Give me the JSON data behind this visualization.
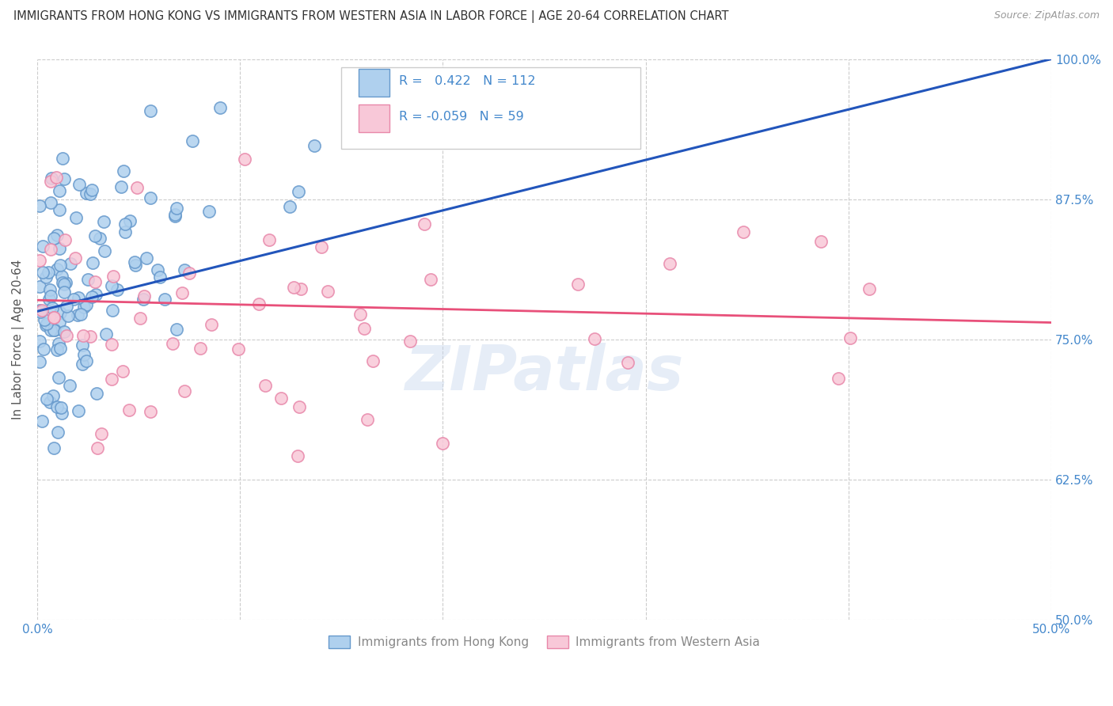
{
  "title": "IMMIGRANTS FROM HONG KONG VS IMMIGRANTS FROM WESTERN ASIA IN LABOR FORCE | AGE 20-64 CORRELATION CHART",
  "source": "Source: ZipAtlas.com",
  "ylabel": "In Labor Force | Age 20-64",
  "xlim": [
    0.0,
    0.5
  ],
  "ylim": [
    0.5,
    1.0
  ],
  "xtick_positions": [
    0.0,
    0.1,
    0.2,
    0.3,
    0.4,
    0.5
  ],
  "xtick_labels": [
    "0.0%",
    "",
    "",
    "",
    "",
    "50.0%"
  ],
  "ytick_positions": [
    1.0,
    0.875,
    0.75,
    0.625,
    0.5
  ],
  "ytick_labels_right": [
    "100.0%",
    "87.5%",
    "75.0%",
    "62.5%",
    "50.0%"
  ],
  "hk_R": 0.422,
  "hk_N": 112,
  "wa_R": -0.059,
  "wa_N": 59,
  "hk_color": "#7ab4e0",
  "wa_color": "#f4a0b8",
  "hk_line_color": "#2255bb",
  "wa_line_color": "#e8507a",
  "legend_label_hk": "Immigrants from Hong Kong",
  "legend_label_wa": "Immigrants from Western Asia",
  "watermark": "ZIPatlas",
  "background_color": "#ffffff",
  "grid_color": "#cccccc",
  "tick_label_color": "#4488cc",
  "title_color": "#333333",
  "source_color": "#999999",
  "ylabel_color": "#555555"
}
